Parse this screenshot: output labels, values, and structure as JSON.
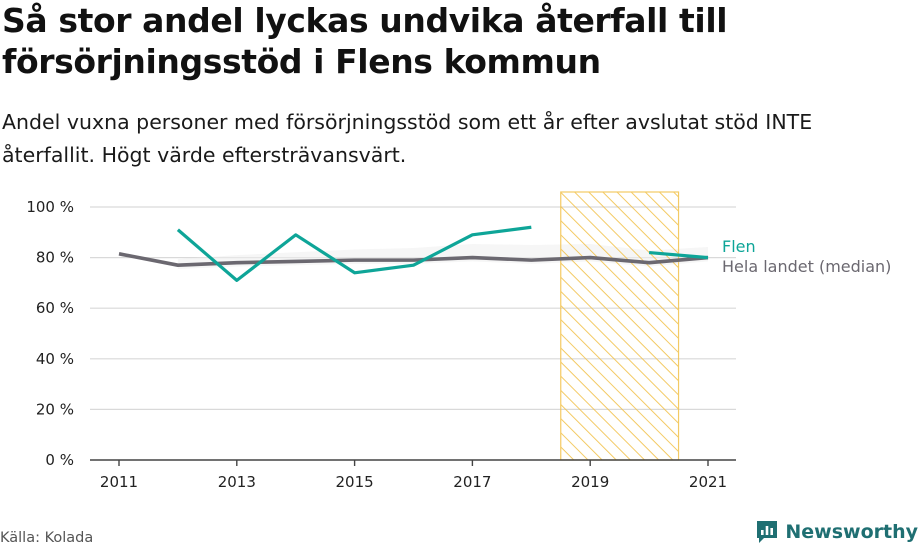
{
  "title": "Så stor andel lyckas undvika återfall till försörjningsstöd i Flens kommun",
  "subtitle": "Andel vuxna personer med försörjningsstöd som ett år efter avslutat stöd INTE återfallit. Högt värde eftersträvansvärt.",
  "source": "Källa: Kolada",
  "brand": "Newsworthy",
  "colors": {
    "flen": "#0ea598",
    "median": "#6b6870",
    "hatch": "#f2c14a",
    "hatch_border": "#f2c14a",
    "grid": "#d9d9d9",
    "band": "#eeeeee"
  },
  "chart_data": {
    "type": "line",
    "x": [
      2011,
      2012,
      2013,
      2014,
      2015,
      2016,
      2017,
      2018,
      2019,
      2020,
      2021
    ],
    "xticks": [
      "2011",
      "2013",
      "2015",
      "2017",
      "2019",
      "2021"
    ],
    "yticks": [
      "0 %",
      "20 %",
      "40 %",
      "60 %",
      "80 %",
      "100 %"
    ],
    "ylim": [
      0,
      100
    ],
    "series": [
      {
        "name": "Flen",
        "key": "flen",
        "values": [
          null,
          91,
          71,
          89,
          74,
          77,
          89,
          92,
          null,
          82,
          80
        ]
      },
      {
        "name": "Hela landet (median)",
        "key": "median",
        "values": [
          81.5,
          77,
          78,
          78.5,
          79,
          79,
          80,
          79,
          80,
          78,
          80
        ]
      }
    ],
    "hatched_range": [
      2018.5,
      2020.5
    ],
    "grid": true,
    "legend": "right"
  }
}
